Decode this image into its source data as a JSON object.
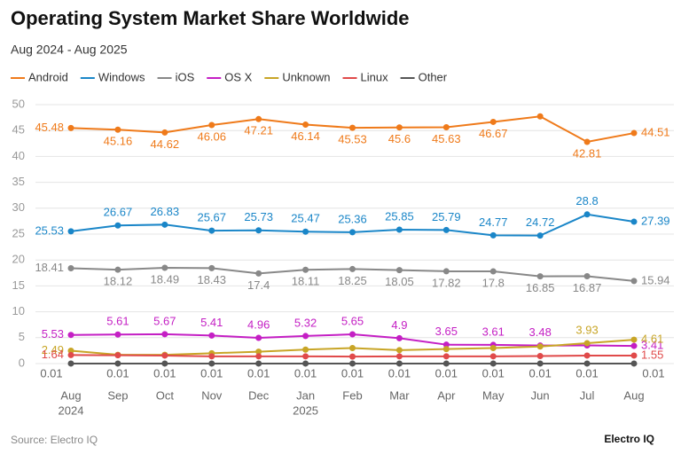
{
  "chart_data": {
    "type": "line",
    "title": "Operating System Market Share Worldwide",
    "subtitle": "Aug 2024 - Aug 2025",
    "categories": [
      "Aug",
      "Sep",
      "Oct",
      "Nov",
      "Dec",
      "Jan",
      "Feb",
      "Mar",
      "Apr",
      "May",
      "Jun",
      "Jul",
      "Aug"
    ],
    "year_labels": [
      "2024",
      null,
      null,
      null,
      null,
      "2025",
      null,
      null,
      null,
      null,
      null,
      null,
      null
    ],
    "ylim": [
      0,
      50
    ],
    "yticks": [
      0,
      5,
      10,
      15,
      20,
      25,
      30,
      35,
      40,
      45,
      50
    ],
    "grid": true,
    "series": [
      {
        "name": "Android",
        "color": "#ef7a1a",
        "values": [
          45.48,
          45.16,
          44.62,
          46.06,
          47.21,
          46.14,
          45.53,
          45.6,
          45.63,
          46.67,
          47.73,
          42.81,
          44.51
        ],
        "value_labels": [
          "45.48",
          "45.16",
          "44.62",
          "46.06",
          "47.21",
          "46.14",
          "45.53",
          "45.6",
          "45.63",
          "46.67",
          null,
          "42.81",
          "44.51"
        ]
      },
      {
        "name": "Windows",
        "color": "#1a86c8",
        "values": [
          25.53,
          26.67,
          26.83,
          25.67,
          25.73,
          25.47,
          25.36,
          25.85,
          25.79,
          24.77,
          24.72,
          28.8,
          27.39
        ]
      },
      {
        "name": "iOS",
        "color": "#888888",
        "values": [
          18.41,
          18.12,
          18.49,
          18.43,
          17.4,
          18.11,
          18.25,
          18.05,
          17.82,
          17.8,
          16.85,
          16.87,
          15.94
        ]
      },
      {
        "name": "OS X",
        "color": "#c41fc4",
        "values": [
          5.53,
          5.61,
          5.67,
          5.41,
          4.96,
          5.32,
          5.65,
          4.9,
          3.65,
          3.61,
          3.48,
          3.5,
          3.41
        ],
        "value_labels": [
          "5.53",
          "5.61",
          "5.67",
          "5.41",
          "4.96",
          "5.32",
          "5.65",
          "4.9",
          "3.65",
          "3.61",
          "3.48",
          null,
          "3.41"
        ]
      },
      {
        "name": "Unknown",
        "color": "#c8a526",
        "values": [
          2.49,
          1.7,
          1.7,
          2.0,
          2.3,
          2.7,
          3.0,
          2.6,
          2.8,
          3.0,
          3.3,
          3.93,
          4.61
        ],
        "value_labels": [
          "2.49",
          null,
          null,
          null,
          null,
          null,
          null,
          null,
          null,
          null,
          null,
          "3.93",
          "4.61"
        ]
      },
      {
        "name": "Linux",
        "color": "#e04a4a",
        "values": [
          1.64,
          1.6,
          1.55,
          1.4,
          1.4,
          1.4,
          1.35,
          1.4,
          1.4,
          1.4,
          1.45,
          1.55,
          1.55
        ],
        "value_labels": [
          "1.64",
          null,
          null,
          null,
          null,
          null,
          null,
          null,
          null,
          null,
          null,
          null,
          "1.55"
        ]
      },
      {
        "name": "Other",
        "color": "#555555",
        "values": [
          0.01,
          0.01,
          0.01,
          0.01,
          0.01,
          0.01,
          0.01,
          0.01,
          0.01,
          0.01,
          0.01,
          0.01,
          0.01
        ]
      }
    ],
    "source": "Source: Electro IQ",
    "brand": "Electro IQ"
  }
}
